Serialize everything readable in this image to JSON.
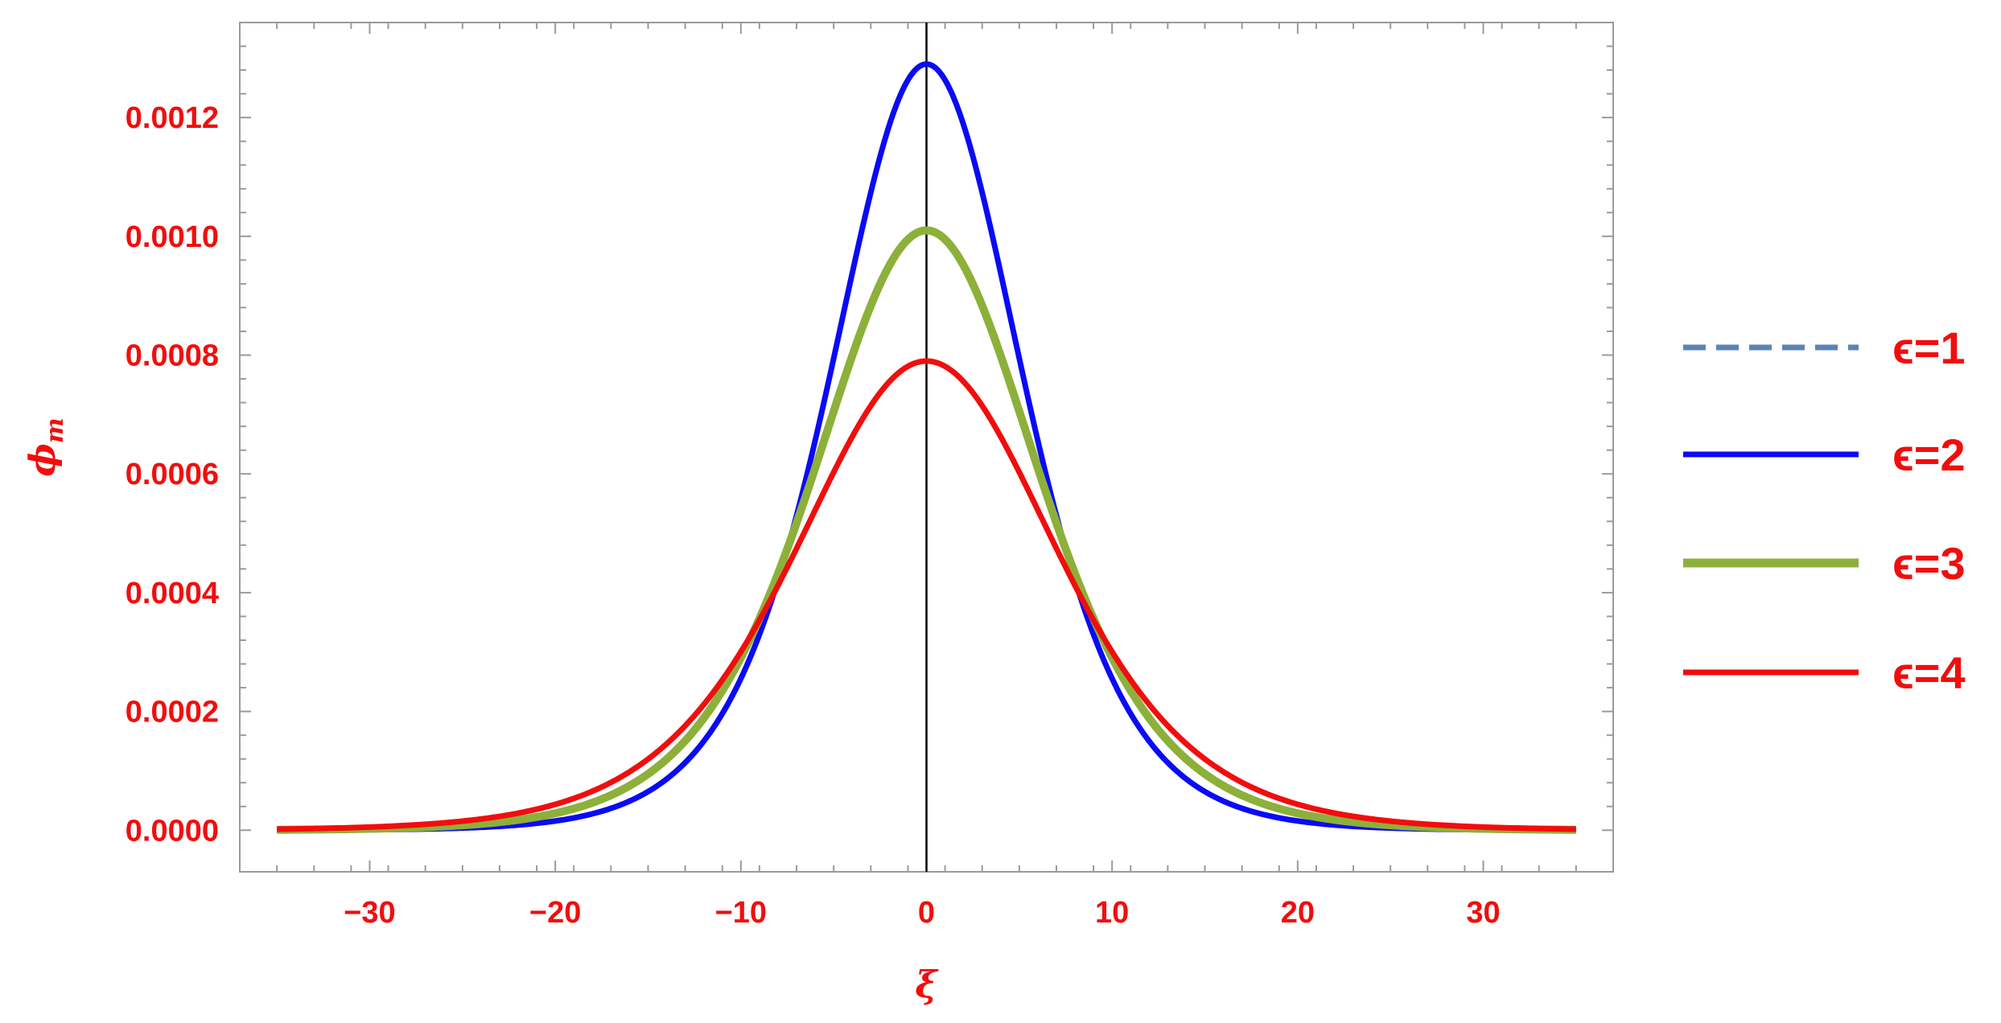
{
  "chart_data": {
    "type": "line",
    "title": "",
    "xlabel": "ξ",
    "ylabel": "φ_m",
    "ylabel_main": "ϕ",
    "ylabel_sub": "m",
    "xlim": [
      -37,
      37
    ],
    "ylim": [
      -7e-05,
      0.00136
    ],
    "x_ticks": [
      -30,
      -20,
      -10,
      0,
      10,
      20,
      30
    ],
    "x_tick_labels": [
      "−30",
      "−20",
      "−10",
      "0",
      "10",
      "20",
      "30"
    ],
    "y_ticks": [
      0,
      0.0002,
      0.0004,
      0.0006,
      0.0008,
      0.001,
      0.0012
    ],
    "y_tick_labels": [
      "0.0000",
      "0.0002",
      "0.0004",
      "0.0006",
      "0.0008",
      "0.0010",
      "0.0012"
    ],
    "x_range": [
      -35,
      35
    ],
    "grid": false,
    "legend_position": "right",
    "series": [
      {
        "name": "ϵ=1",
        "label": "ϵ=1",
        "color": "#5b84b8",
        "dash": true,
        "amplitude": 0.00129,
        "width": 6.9,
        "shape": "sech2",
        "visible_curve": false
      },
      {
        "name": "ϵ=2",
        "label": "ϵ=2",
        "color": "#0a0af5",
        "dash": false,
        "amplitude": 0.00129,
        "width": 6.9,
        "shape": "sech2"
      },
      {
        "name": "ϵ=3",
        "label": "ϵ=3",
        "color": "#8db03a",
        "dash": false,
        "amplitude": 0.00101,
        "width": 8.1,
        "shape": "sech2"
      },
      {
        "name": "ϵ=4",
        "label": "ϵ=4",
        "color": "#f20d0d",
        "dash": false,
        "amplitude": 0.00079,
        "width": 9.4,
        "shape": "sech2"
      }
    ],
    "sample_points": {
      "x": [
        -30,
        -20,
        -10,
        -5,
        0,
        5,
        10,
        20,
        30
      ],
      "ϵ=2": [
        0.0,
        0.0,
        0.00021,
        0.00074,
        0.00129,
        0.00074,
        0.00021,
        0.0,
        0.0
      ],
      "ϵ=3": [
        0.0,
        2e-05,
        0.00032,
        0.00071,
        0.00101,
        0.00071,
        0.00032,
        2e-05,
        0.0
      ],
      "ϵ=4": [
        1e-05,
        6e-05,
        0.00041,
        0.00062,
        0.00079,
        0.00062,
        0.00041,
        6e-05,
        1e-05
      ]
    }
  }
}
